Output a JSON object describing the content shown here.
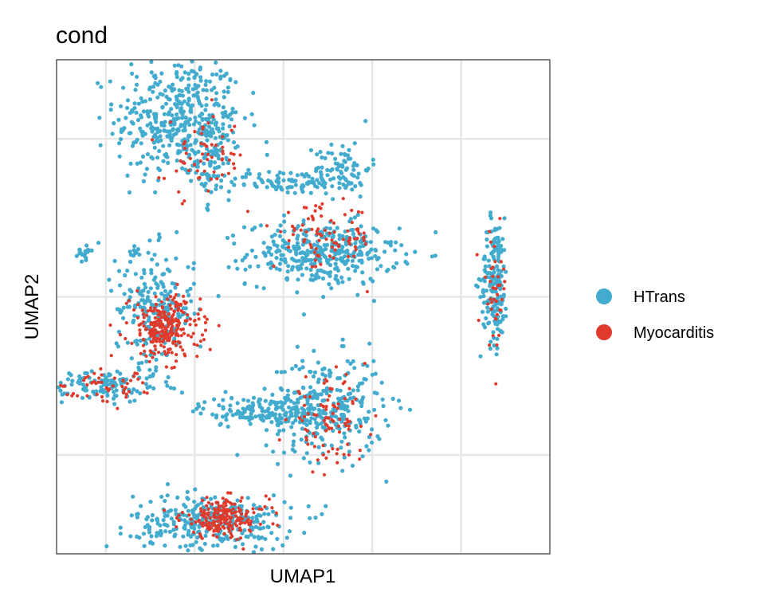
{
  "chart_data": {
    "type": "scatter",
    "title": "cond",
    "xlabel": "UMAP1",
    "ylabel": "UMAP2",
    "xlim": [
      -10,
      15
    ],
    "ylim": [
      -13,
      12
    ],
    "x_ticks": [
      -7.5,
      -3,
      1.5,
      6,
      10.5
    ],
    "y_ticks": [
      8,
      0,
      -8
    ],
    "tick_labels_shown": false,
    "grid": true,
    "legend_position": "right",
    "colors": {
      "HTrans": "#43ACCE",
      "Myocarditis": "#DF3A2B"
    },
    "series": [
      {
        "name": "HTrans",
        "color": "#43ACCE",
        "clusters": [
          {
            "cx": -3.8,
            "cy": 9.0,
            "sx": 1.6,
            "sy": 1.6,
            "n": 420
          },
          {
            "cx": -2.0,
            "cy": 7.0,
            "sx": 0.4,
            "sy": 1.0,
            "n": 70
          },
          {
            "cx": 3.5,
            "cy": 2.2,
            "sx": 1.9,
            "sy": 0.8,
            "n": 360
          },
          {
            "cx": 4.5,
            "cy": 6.5,
            "sx": 0.7,
            "sy": 0.7,
            "n": 80
          },
          {
            "cx": 1.5,
            "cy": 5.8,
            "sx": 1.5,
            "sy": 0.3,
            "n": 90
          },
          {
            "cx": 12.2,
            "cy": 0.8,
            "sx": 0.35,
            "sy": 1.6,
            "n": 180
          },
          {
            "cx": -5.0,
            "cy": -0.6,
            "sx": 1.0,
            "sy": 1.5,
            "n": 220
          },
          {
            "cx": 3.6,
            "cy": -5.6,
            "sx": 1.5,
            "sy": 1.3,
            "n": 300
          },
          {
            "cx": 0.4,
            "cy": -5.8,
            "sx": 1.6,
            "sy": 0.4,
            "n": 150
          },
          {
            "cx": -2.1,
            "cy": -11.4,
            "sx": 2.0,
            "sy": 0.7,
            "n": 320
          },
          {
            "cx": -7.8,
            "cy": -4.5,
            "sx": 1.6,
            "sy": 0.4,
            "n": 120
          },
          {
            "cx": -8.6,
            "cy": 2.3,
            "sx": 0.2,
            "sy": 0.2,
            "n": 20
          },
          {
            "cx": -6.0,
            "cy": 2.2,
            "sx": 0.1,
            "sy": 0.1,
            "n": 6
          }
        ]
      },
      {
        "name": "Myocarditis",
        "color": "#DF3A2B",
        "clusters": [
          {
            "cx": -4.5,
            "cy": -1.6,
            "sx": 0.9,
            "sy": 0.8,
            "n": 260
          },
          {
            "cx": -1.5,
            "cy": -11.2,
            "sx": 1.1,
            "sy": 0.5,
            "n": 200
          },
          {
            "cx": 3.8,
            "cy": -6.2,
            "sx": 1.0,
            "sy": 1.0,
            "n": 90
          },
          {
            "cx": 3.6,
            "cy": 3.0,
            "sx": 1.3,
            "sy": 0.8,
            "n": 90
          },
          {
            "cx": -2.5,
            "cy": 7.0,
            "sx": 1.0,
            "sy": 1.0,
            "n": 60
          },
          {
            "cx": -7.5,
            "cy": -4.6,
            "sx": 1.6,
            "sy": 0.4,
            "n": 60
          },
          {
            "cx": 12.2,
            "cy": 0.4,
            "sx": 0.3,
            "sy": 1.4,
            "n": 40
          }
        ]
      }
    ]
  }
}
